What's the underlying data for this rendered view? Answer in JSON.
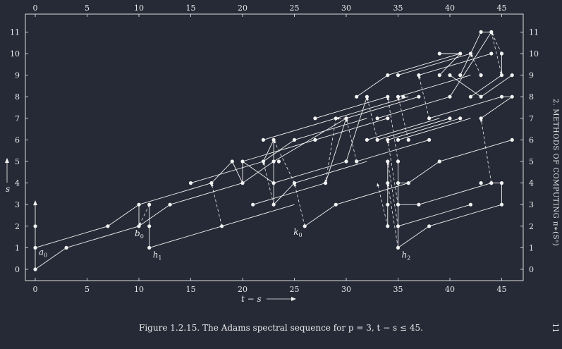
{
  "caption": "Figure 1.2.15. The Adams spectral sequence for p = 3, t − s ≤ 45.",
  "side_header": "2. METHODS OF COMPUTING π∗(Sⁿ)",
  "page_number": "11",
  "colors": {
    "background": "#262a36",
    "ink": "#f2f2f2"
  },
  "chart_data": {
    "type": "scatter",
    "xlabel": "t − s",
    "ylabel": "s",
    "xlim": [
      0,
      46
    ],
    "ylim": [
      0,
      11
    ],
    "x_ticks": [
      0,
      5,
      10,
      15,
      20,
      25,
      30,
      35,
      40,
      45
    ],
    "y_ticks": [
      0,
      1,
      2,
      3,
      4,
      5,
      6,
      7,
      8,
      9,
      10,
      11
    ],
    "labels": [
      {
        "text": "a0",
        "x": 0,
        "y": 1
      },
      {
        "text": "b0",
        "x": 10,
        "y": 2
      },
      {
        "text": "h1",
        "x": 11,
        "y": 1
      },
      {
        "text": "k0",
        "x": 26,
        "y": 2
      },
      {
        "text": "h2",
        "x": 35,
        "y": 1
      }
    ],
    "points": [
      [
        0,
        0
      ],
      [
        0,
        1
      ],
      [
        0,
        2
      ],
      [
        3,
        1
      ],
      [
        7,
        2
      ],
      [
        10,
        2
      ],
      [
        10,
        3
      ],
      [
        11,
        1
      ],
      [
        11,
        2
      ],
      [
        11,
        3
      ],
      [
        13,
        3
      ],
      [
        15,
        4
      ],
      [
        17,
        4
      ],
      [
        18,
        2
      ],
      [
        19,
        5
      ],
      [
        20,
        4
      ],
      [
        20,
        5
      ],
      [
        21,
        3
      ],
      [
        22,
        5
      ],
      [
        22,
        6
      ],
      [
        23,
        3
      ],
      [
        23,
        4
      ],
      [
        23,
        5
      ],
      [
        23,
        6
      ],
      [
        23.5,
        5
      ],
      [
        25,
        4
      ],
      [
        25,
        6
      ],
      [
        26,
        2
      ],
      [
        27,
        6
      ],
      [
        27,
        7
      ],
      [
        28,
        4
      ],
      [
        29,
        3
      ],
      [
        29,
        7
      ],
      [
        30,
        5
      ],
      [
        30,
        7
      ],
      [
        31,
        5
      ],
      [
        31,
        8
      ],
      [
        32,
        6
      ],
      [
        32,
        8
      ],
      [
        33,
        6
      ],
      [
        33,
        7
      ],
      [
        34,
        2
      ],
      [
        34,
        3
      ],
      [
        34,
        4
      ],
      [
        34,
        5
      ],
      [
        34,
        6
      ],
      [
        34,
        7
      ],
      [
        34,
        8
      ],
      [
        34,
        9
      ],
      [
        35,
        1
      ],
      [
        35,
        2
      ],
      [
        35,
        3
      ],
      [
        35,
        4
      ],
      [
        35,
        5
      ],
      [
        35,
        6
      ],
      [
        35,
        8
      ],
      [
        35,
        9
      ],
      [
        35.5,
        8
      ],
      [
        36,
        4
      ],
      [
        36,
        6
      ],
      [
        37,
        3
      ],
      [
        37,
        8
      ],
      [
        37,
        9
      ],
      [
        38,
        2
      ],
      [
        38,
        6
      ],
      [
        38,
        7
      ],
      [
        39,
        5
      ],
      [
        39,
        9
      ],
      [
        39,
        10
      ],
      [
        40,
        7
      ],
      [
        40,
        8
      ],
      [
        40,
        9
      ],
      [
        41,
        7
      ],
      [
        41,
        10
      ],
      [
        41,
        9
      ],
      [
        42,
        3
      ],
      [
        42,
        8
      ],
      [
        42,
        10
      ],
      [
        43,
        4
      ],
      [
        43,
        7
      ],
      [
        43,
        8
      ],
      [
        43,
        9
      ],
      [
        43,
        11
      ],
      [
        44,
        4
      ],
      [
        44,
        10
      ],
      [
        44,
        11
      ],
      [
        45,
        3
      ],
      [
        45,
        4
      ],
      [
        45,
        8
      ],
      [
        45,
        9
      ],
      [
        45,
        10
      ],
      [
        46,
        6
      ],
      [
        46,
        8
      ],
      [
        46,
        9
      ]
    ],
    "lines": [
      [
        [
          0,
          0
        ],
        [
          0,
          2
        ]
      ],
      [
        [
          0,
          0
        ],
        [
          3,
          1
        ]
      ],
      [
        [
          0,
          1
        ],
        [
          7,
          2
        ]
      ],
      [
        [
          3,
          1
        ],
        [
          10,
          2
        ]
      ],
      [
        [
          7,
          2
        ],
        [
          10,
          3
        ]
      ],
      [
        [
          10,
          2
        ],
        [
          10,
          3
        ]
      ],
      [
        [
          10,
          2
        ],
        [
          13,
          3
        ]
      ],
      [
        [
          11,
          1
        ],
        [
          11,
          3
        ]
      ],
      [
        [
          11,
          1
        ],
        [
          18,
          2
        ]
      ],
      [
        [
          10,
          3
        ],
        [
          17,
          4
        ]
      ],
      [
        [
          13,
          3
        ],
        [
          20,
          4
        ]
      ],
      [
        [
          15,
          4
        ],
        [
          22,
          5
        ]
      ],
      [
        [
          17,
          4
        ],
        [
          19,
          5
        ]
      ],
      [
        [
          19,
          5
        ],
        [
          20,
          4
        ]
      ],
      [
        [
          20,
          4
        ],
        [
          20,
          5
        ]
      ],
      [
        [
          20,
          4
        ],
        [
          23,
          5
        ]
      ],
      [
        [
          20,
          5
        ],
        [
          23,
          4
        ]
      ],
      [
        [
          20,
          5
        ],
        [
          27,
          6
        ]
      ],
      [
        [
          18,
          2
        ],
        [
          25,
          3
        ]
      ],
      [
        [
          21,
          3
        ],
        [
          28,
          4
        ]
      ],
      [
        [
          22,
          5
        ],
        [
          23,
          6
        ]
      ],
      [
        [
          22,
          5
        ],
        [
          25,
          6
        ]
      ],
      [
        [
          22,
          6
        ],
        [
          29,
          7
        ]
      ],
      [
        [
          23,
          3
        ],
        [
          23,
          6
        ]
      ],
      [
        [
          23,
          3
        ],
        [
          25,
          4
        ]
      ],
      [
        [
          23,
          4
        ],
        [
          30,
          5
        ]
      ],
      [
        [
          23,
          5
        ],
        [
          30,
          7
        ]
      ],
      [
        [
          25,
          4
        ],
        [
          32,
          5
        ]
      ],
      [
        [
          25,
          6
        ],
        [
          32,
          7
        ]
      ],
      [
        [
          27,
          6
        ],
        [
          34,
          7
        ]
      ],
      [
        [
          28,
          4
        ],
        [
          30,
          7
        ]
      ],
      [
        [
          30,
          5
        ],
        [
          32,
          8
        ]
      ],
      [
        [
          30,
          7
        ],
        [
          37,
          8
        ]
      ],
      [
        [
          31,
          5
        ],
        [
          38,
          6
        ]
      ],
      [
        [
          26,
          2
        ],
        [
          29,
          3
        ]
      ],
      [
        [
          29,
          3
        ],
        [
          36,
          4
        ]
      ],
      [
        [
          29,
          7
        ],
        [
          36,
          8
        ]
      ],
      [
        [
          27,
          7
        ],
        [
          34,
          8
        ]
      ],
      [
        [
          31,
          8
        ],
        [
          34,
          9
        ]
      ],
      [
        [
          32,
          6
        ],
        [
          39,
          7
        ]
      ],
      [
        [
          33,
          6
        ],
        [
          40,
          7
        ]
      ],
      [
        [
          33,
          7
        ],
        [
          40,
          8
        ]
      ],
      [
        [
          34,
          9
        ],
        [
          41,
          10
        ]
      ],
      [
        [
          34,
          2
        ],
        [
          34,
          5
        ]
      ],
      [
        [
          35,
          1
        ],
        [
          35,
          5
        ]
      ],
      [
        [
          35,
          1
        ],
        [
          38,
          2
        ]
      ],
      [
        [
          35,
          2
        ],
        [
          42,
          3
        ]
      ],
      [
        [
          35,
          3
        ],
        [
          37,
          3
        ]
      ],
      [
        [
          35,
          4
        ],
        [
          36,
          4
        ]
      ],
      [
        [
          36,
          4
        ],
        [
          39,
          5
        ]
      ],
      [
        [
          37,
          3
        ],
        [
          44,
          4
        ]
      ],
      [
        [
          38,
          2
        ],
        [
          45,
          3
        ]
      ],
      [
        [
          39,
          5
        ],
        [
          46,
          6
        ]
      ],
      [
        [
          35,
          6
        ],
        [
          42,
          7
        ]
      ],
      [
        [
          34,
          6
        ],
        [
          41,
          7
        ]
      ],
      [
        [
          35,
          8
        ],
        [
          42,
          9
        ]
      ],
      [
        [
          35,
          9
        ],
        [
          42,
          10
        ]
      ],
      [
        [
          37,
          9
        ],
        [
          44,
          10
        ]
      ],
      [
        [
          39,
          9
        ],
        [
          41,
          10
        ]
      ],
      [
        [
          40,
          8
        ],
        [
          44,
          11
        ]
      ],
      [
        [
          40,
          9
        ],
        [
          43,
          8
        ]
      ],
      [
        [
          41,
          9
        ],
        [
          43,
          11
        ]
      ],
      [
        [
          42,
          8
        ],
        [
          45,
          9
        ]
      ],
      [
        [
          43,
          8
        ],
        [
          46,
          9
        ]
      ],
      [
        [
          44,
          4
        ],
        [
          45,
          4
        ]
      ],
      [
        [
          45,
          3
        ],
        [
          45,
          4
        ]
      ],
      [
        [
          45,
          8
        ],
        [
          46,
          8
        ]
      ],
      [
        [
          45,
          9
        ],
        [
          45,
          10
        ]
      ],
      [
        [
          43,
          7
        ],
        [
          46,
          8
        ]
      ],
      [
        [
          38,
          7
        ],
        [
          45,
          8
        ]
      ],
      [
        [
          39,
          10
        ],
        [
          41,
          10
        ]
      ],
      [
        [
          43,
          11
        ],
        [
          44,
          11
        ]
      ]
    ],
    "dashed": [
      [
        [
          11,
          3
        ],
        [
          10,
          2
        ]
      ],
      [
        [
          18,
          2
        ],
        [
          17,
          4
        ]
      ],
      [
        [
          23,
          3
        ],
        [
          22,
          5
        ]
      ],
      [
        [
          25,
          4
        ],
        [
          23,
          6
        ]
      ],
      [
        [
          26,
          2
        ],
        [
          25,
          4
        ]
      ],
      [
        [
          29,
          7
        ],
        [
          28,
          4
        ]
      ],
      [
        [
          30,
          7
        ],
        [
          29,
          7
        ]
      ],
      [
        [
          31,
          5
        ],
        [
          30,
          7
        ]
      ],
      [
        [
          33,
          6
        ],
        [
          32,
          8
        ]
      ],
      [
        [
          34,
          2
        ],
        [
          33,
          4
        ]
      ],
      [
        [
          35,
          1
        ],
        [
          34,
          4
        ]
      ],
      [
        [
          35,
          2
        ],
        [
          34,
          5
        ]
      ],
      [
        [
          35,
          3
        ],
        [
          34,
          6
        ]
      ],
      [
        [
          35,
          5
        ],
        [
          34,
          8
        ]
      ],
      [
        [
          36,
          6
        ],
        [
          35,
          8
        ]
      ],
      [
        [
          38,
          7
        ],
        [
          37,
          9
        ]
      ],
      [
        [
          44,
          4
        ],
        [
          43,
          7
        ]
      ],
      [
        [
          44,
          11
        ],
        [
          45,
          9
        ]
      ],
      [
        [
          45,
          10
        ],
        [
          44,
          11
        ]
      ],
      [
        [
          43,
          9
        ],
        [
          42,
          10
        ]
      ]
    ],
    "arrows": [
      [
        [
          0,
          2
        ],
        [
          0,
          3.1
        ]
      ]
    ]
  }
}
